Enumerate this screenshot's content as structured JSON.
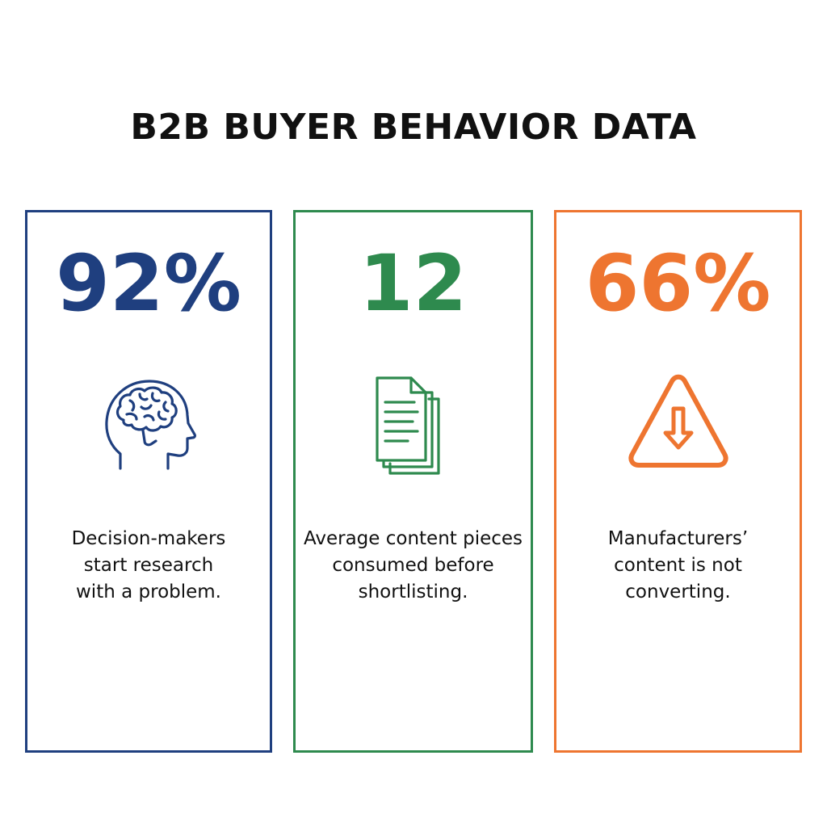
{
  "title": "B2B BUYER BEHAVIOR DATA",
  "colors": {
    "blue": "#1f3f7f",
    "green": "#2e8a4e",
    "orange": "#ee7530",
    "title": "#111111"
  },
  "cards": [
    {
      "value": "92%",
      "icon": "brain-head-icon",
      "caption_lines": [
        "Decision-makers",
        "start research",
        "with a problem."
      ]
    },
    {
      "value": "12",
      "icon": "documents-icon",
      "caption_lines": [
        "Average content pieces",
        "consumed before",
        "shortlisting."
      ]
    },
    {
      "value": "66%",
      "icon": "warning-down-arrow-icon",
      "caption_lines": [
        "Manufacturers’",
        "content is not",
        "converting."
      ]
    }
  ]
}
